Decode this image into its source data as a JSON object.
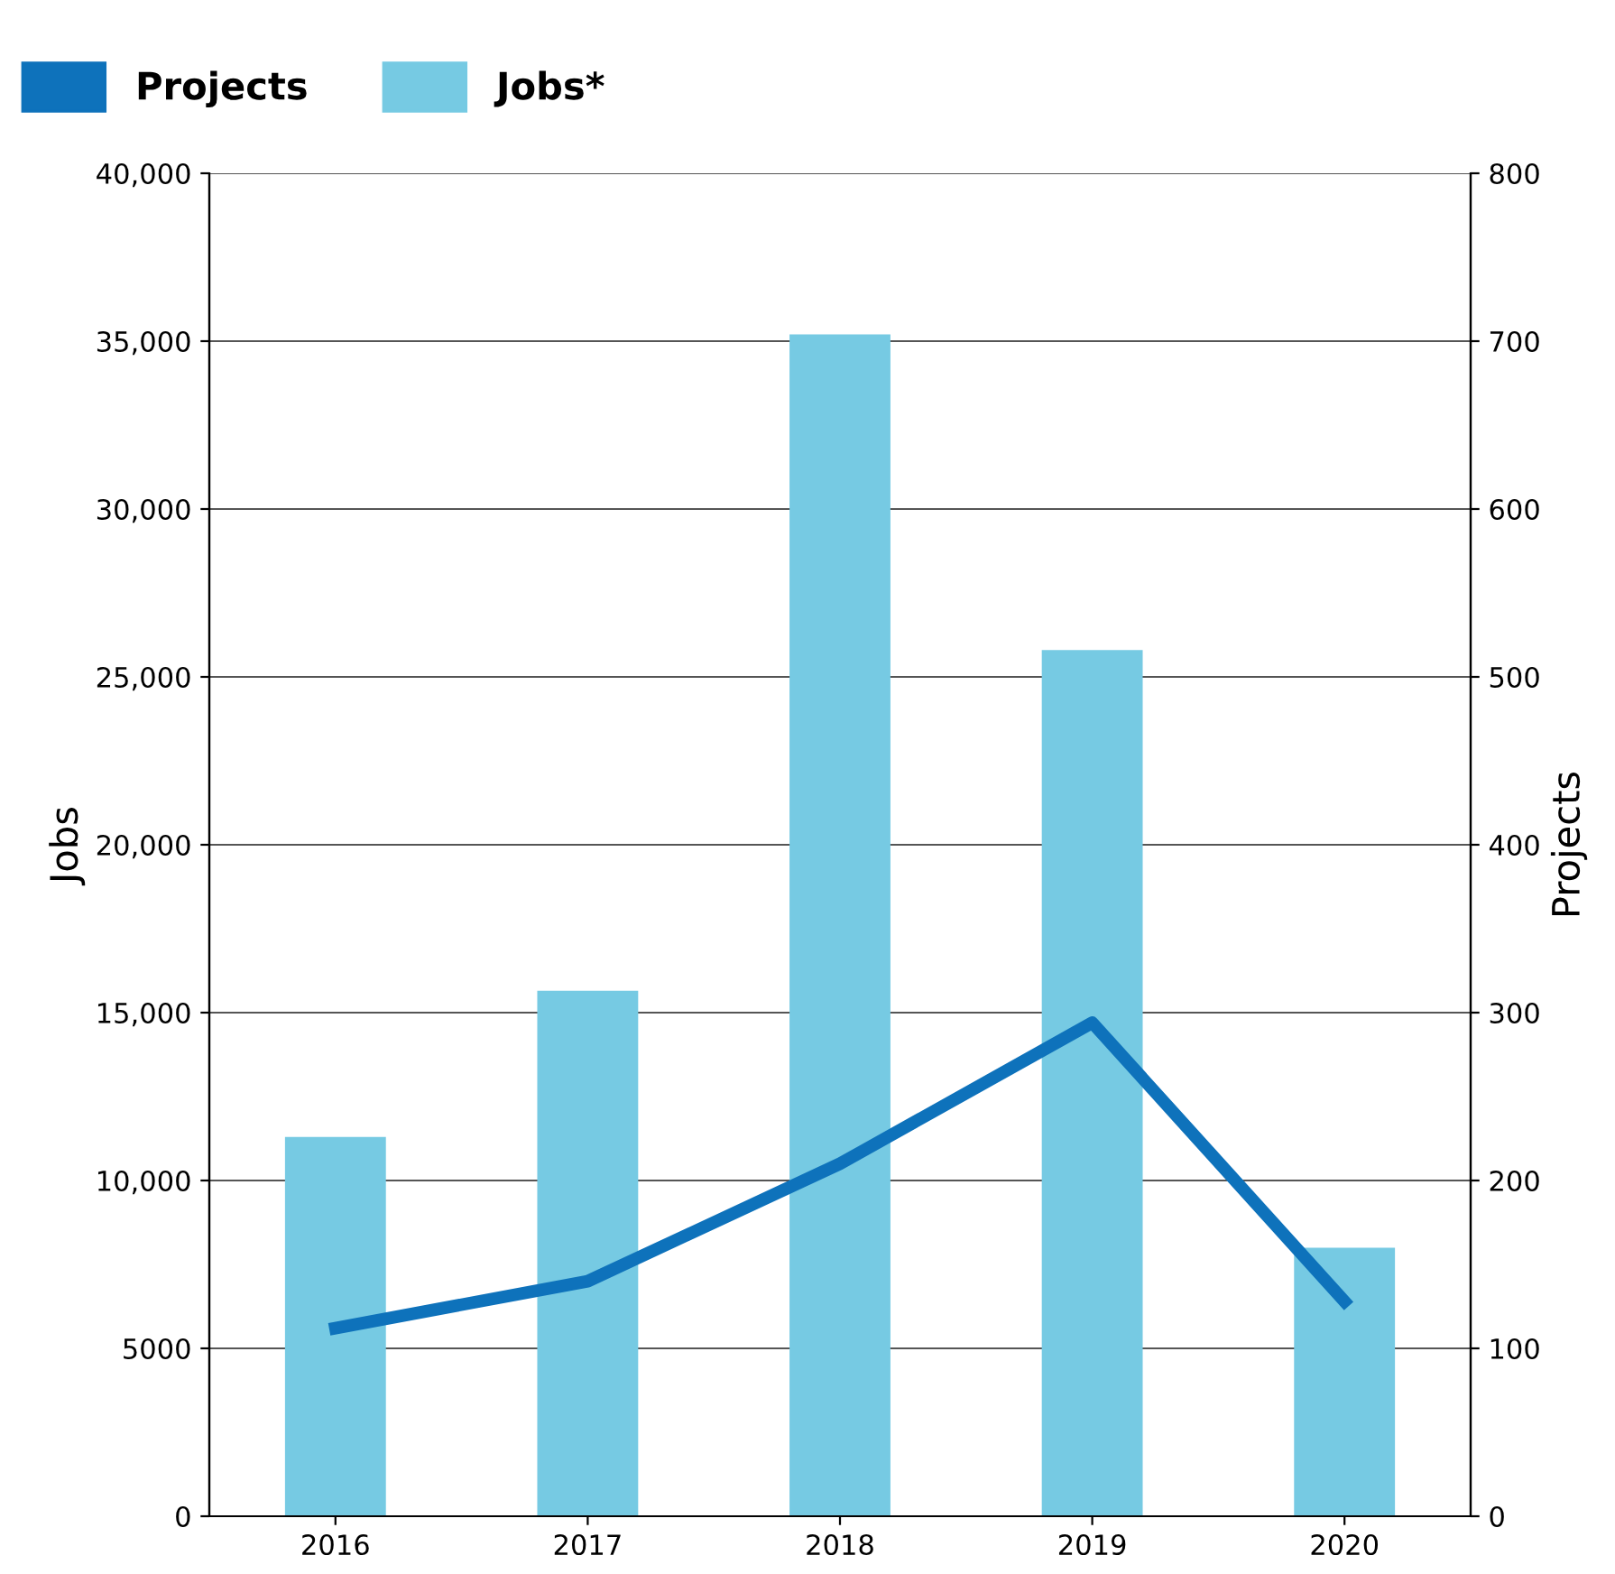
{
  "chart_data": {
    "type": "bar",
    "categories": [
      "2016",
      "2017",
      "2018",
      "2019",
      "2020"
    ],
    "series": [
      {
        "name": "Projects",
        "type": "line",
        "axis": "y2",
        "color": "#0e72bb",
        "values": [
          112,
          140,
          210,
          294,
          128
        ]
      },
      {
        "name": "Jobs*",
        "color": "#76cae3",
        "values": [
          11300,
          15650,
          35200,
          25800,
          8000
        ]
      }
    ],
    "ylabel": "Jobs",
    "y2label": "Projects",
    "ylim": [
      0,
      40000
    ],
    "yticks": [
      0,
      5000,
      {
        "value": 10000,
        "label": "10,000"
      },
      {
        "value": 15000,
        "label": "15,000"
      },
      {
        "value": 20000,
        "label": "20,000"
      },
      {
        "value": 25000,
        "label": "25,000"
      },
      {
        "value": 30000,
        "label": "30,000"
      },
      {
        "value": 35000,
        "label": "35,000"
      },
      {
        "value": 40000,
        "label": "40,000"
      }
    ],
    "y2lim": [
      0,
      800
    ],
    "y2ticks": [
      0,
      100,
      200,
      300,
      400,
      500,
      600,
      700,
      800
    ],
    "grid": "y",
    "legend": "top left",
    "marker": "none",
    "line_style": "solid"
  }
}
